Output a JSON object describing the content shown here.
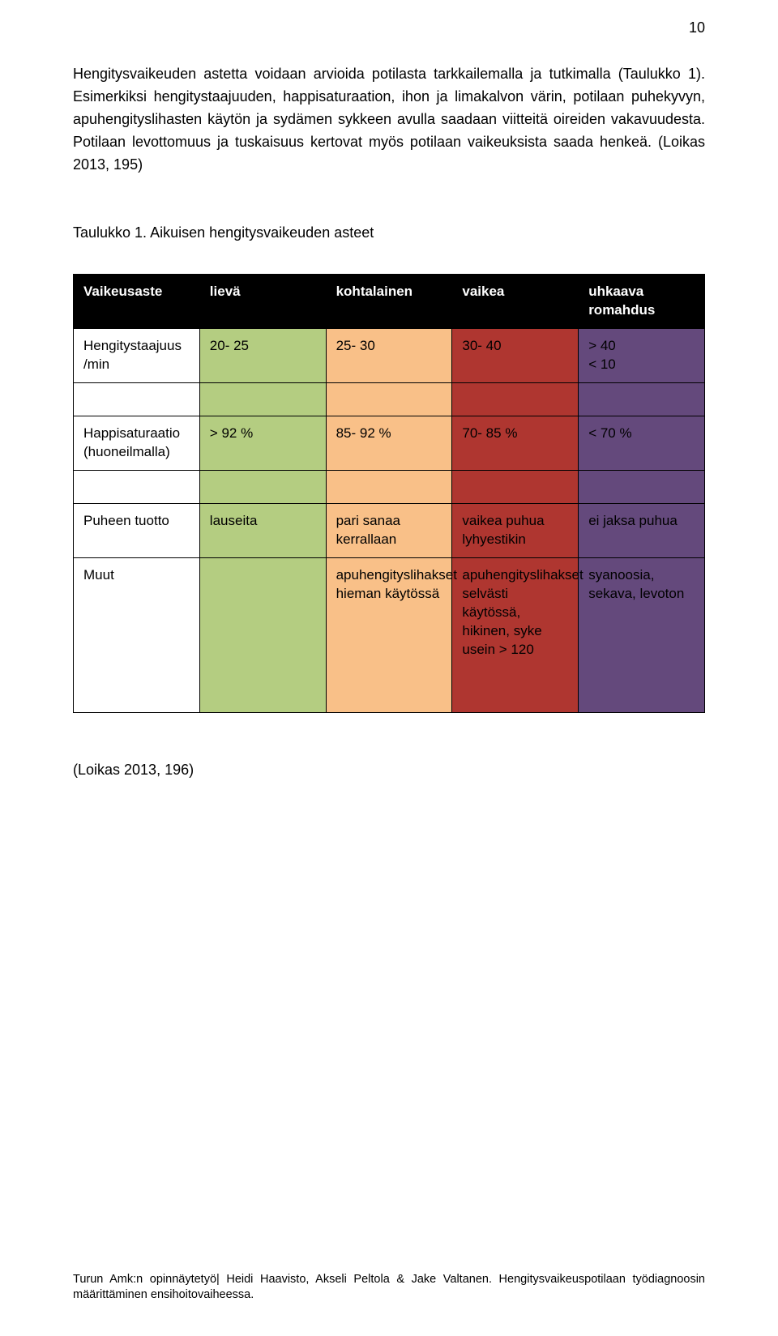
{
  "page_number": "10",
  "paragraph": "Hengitysvaikeuden astetta voidaan arvioida potilasta tarkkailemalla ja tutkimalla (Taulukko 1). Esimerkiksi hengitystaajuuden, happisaturaation, ihon ja limakalvon värin, potilaan puhekyvyn, apuhengityslihasten käytön ja sydämen sykkeen avulla saadaan viitteitä oireiden vakavuudesta. Potilaan levottomuus ja tuskaisuus kertovat myös potilaan vaikeuksista saada henkeä. (Loikas 2013, 195)",
  "table_caption": "Taulukko 1. Aikuisen hengitysvaikeuden asteet",
  "colors": {
    "header_black": "#000000",
    "header_text": "#ffffff",
    "lieva": "#b4cd81",
    "kohtalainen": "#f9c088",
    "vaikea": "#af3630",
    "uhkaava": "#64497c",
    "col0_bg": "#ffffff",
    "col0_header_bg": "#000000"
  },
  "table": {
    "header": {
      "c0": "Vaikeusaste",
      "c1": "lievä",
      "c2": "kohtalainen",
      "c3": "vaikea",
      "c4": "uhkaava romahdus"
    },
    "r1": {
      "c0": "Hengitystaajuus /min",
      "c1": "20- 25",
      "c2": "25- 30",
      "c3": "30- 40",
      "c4": "> 40\n< 10"
    },
    "r2": {
      "c0": "Happisaturaatio (huoneilmalla)",
      "c1": "> 92 %",
      "c2": "85- 92 %",
      "c3": "70- 85 %",
      "c4": "< 70 %"
    },
    "r3": {
      "c0": "Puheen tuotto",
      "c1": "lauseita",
      "c2": "pari sanaa kerrallaan",
      "c3": "vaikea puhua lyhyestikin",
      "c4": "ei jaksa puhua"
    },
    "r4": {
      "c0": "Muut",
      "c1": "",
      "c2": "apuhengityslihakset hieman käytössä",
      "c3": "apuhengityslihakset selvästi käytössä, hikinen, syke usein > 120",
      "c4": "syanoosia, sekava, levoton"
    }
  },
  "citation": "(Loikas 2013, 196)",
  "footer": "Turun Amk:n opinnäytetyö| Heidi Haavisto, Akseli Peltola & Jake Valtanen. Hengitysvaikeuspotilaan työdiagnoosin määrittäminen ensihoitovaiheessa."
}
